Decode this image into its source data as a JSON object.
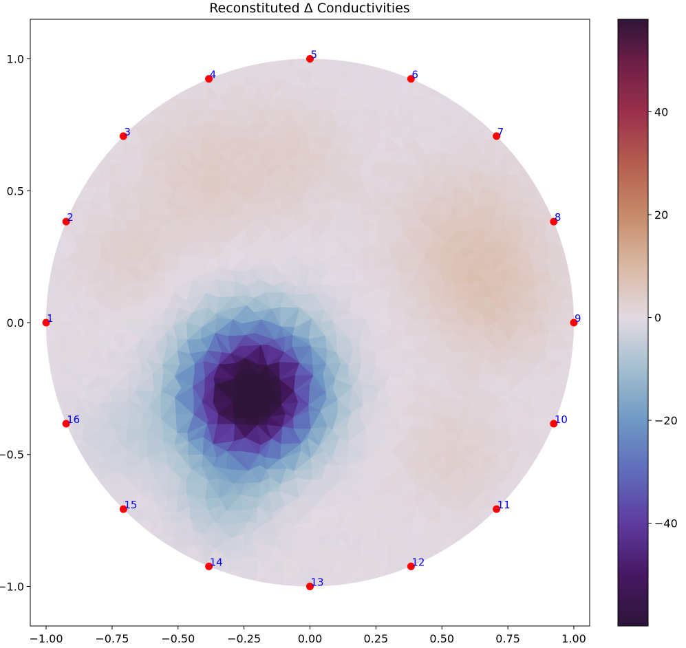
{
  "chart_data": {
    "type": "heatmap",
    "title": "Reconstituted Δ Conductivities",
    "xlabel": "",
    "ylabel": "",
    "xlim": [
      -1.06,
      1.06
    ],
    "ylim": [
      -1.15,
      1.15
    ],
    "xticks": [
      "−1.00",
      "−0.75",
      "−0.50",
      "−0.25",
      "0.00",
      "0.25",
      "0.50",
      "0.75",
      "1.00"
    ],
    "xtick_values": [
      -1.0,
      -0.75,
      -0.5,
      -0.25,
      0.0,
      0.25,
      0.5,
      0.75,
      1.0
    ],
    "yticks": [
      "−1.0",
      "−0.5",
      "0.0",
      "0.5",
      "1.0"
    ],
    "ytick_values": [
      -1.0,
      -0.5,
      0.0,
      0.5,
      1.0
    ],
    "grid": false,
    "domain": {
      "shape": "circle",
      "center": [
        0,
        0
      ],
      "radius": 1.0
    },
    "colorbar": {
      "colormap": "twilight_shifted",
      "range": [
        -60,
        58
      ],
      "ticks": [
        "40",
        "20",
        "0",
        "−20",
        "−40"
      ],
      "tick_values": [
        40,
        20,
        0,
        -20,
        -40
      ],
      "stops": [
        {
          "v": -60,
          "color": "#2e1539"
        },
        {
          "v": -50,
          "color": "#451862"
        },
        {
          "v": -40,
          "color": "#5e3b9f"
        },
        {
          "v": -30,
          "color": "#5f6cbb"
        },
        {
          "v": -20,
          "color": "#6f98c4"
        },
        {
          "v": -10,
          "color": "#a3bfcf"
        },
        {
          "v": 0,
          "color": "#e2d9e2"
        },
        {
          "v": 10,
          "color": "#d9b8a3"
        },
        {
          "v": 20,
          "color": "#c68a6a"
        },
        {
          "v": 30,
          "color": "#b55d4f"
        },
        {
          "v": 40,
          "color": "#9a2f4b"
        },
        {
          "v": 50,
          "color": "#6a1d45"
        },
        {
          "v": 58,
          "color": "#2e1539"
        }
      ]
    },
    "field_blobs": [
      {
        "x": -0.21,
        "y": -0.25,
        "sigma": 0.17,
        "amp": -60
      },
      {
        "x": -0.26,
        "y": -0.36,
        "sigma": 0.14,
        "amp": -12
      },
      {
        "x": -0.33,
        "y": -0.66,
        "sigma": 0.12,
        "amp": -8
      },
      {
        "x": -0.68,
        "y": -0.42,
        "sigma": 0.12,
        "amp": -4
      },
      {
        "x": 0.6,
        "y": 0.3,
        "sigma": 0.2,
        "amp": 6
      },
      {
        "x": 0.72,
        "y": 0.05,
        "sigma": 0.15,
        "amp": 4
      },
      {
        "x": -0.4,
        "y": 0.55,
        "sigma": 0.18,
        "amp": 4
      },
      {
        "x": -0.05,
        "y": 0.62,
        "sigma": 0.15,
        "amp": 3
      },
      {
        "x": -0.7,
        "y": 0.25,
        "sigma": 0.12,
        "amp": 3
      },
      {
        "x": 0.55,
        "y": -0.5,
        "sigma": 0.15,
        "amp": 3
      }
    ],
    "electrodes": [
      {
        "label": "1",
        "x": -1.0,
        "y": 0.0
      },
      {
        "label": "2",
        "x": -0.924,
        "y": 0.383
      },
      {
        "label": "3",
        "x": -0.707,
        "y": 0.707
      },
      {
        "label": "4",
        "x": -0.383,
        "y": 0.924
      },
      {
        "label": "5",
        "x": 0.0,
        "y": 1.0
      },
      {
        "label": "6",
        "x": 0.383,
        "y": 0.924
      },
      {
        "label": "7",
        "x": 0.707,
        "y": 0.707
      },
      {
        "label": "8",
        "x": 0.924,
        "y": 0.383
      },
      {
        "label": "9",
        "x": 1.0,
        "y": 0.0
      },
      {
        "label": "10",
        "x": 0.924,
        "y": -0.383
      },
      {
        "label": "11",
        "x": 0.707,
        "y": -0.707
      },
      {
        "label": "12",
        "x": 0.383,
        "y": -0.924
      },
      {
        "label": "13",
        "x": 0.0,
        "y": -1.0
      },
      {
        "label": "14",
        "x": -0.383,
        "y": -0.924
      },
      {
        "label": "15",
        "x": -0.707,
        "y": -0.707
      },
      {
        "label": "16",
        "x": -0.924,
        "y": -0.383
      }
    ],
    "electrode_color": "#ff0000",
    "electrode_label_color": "#0000ee"
  }
}
